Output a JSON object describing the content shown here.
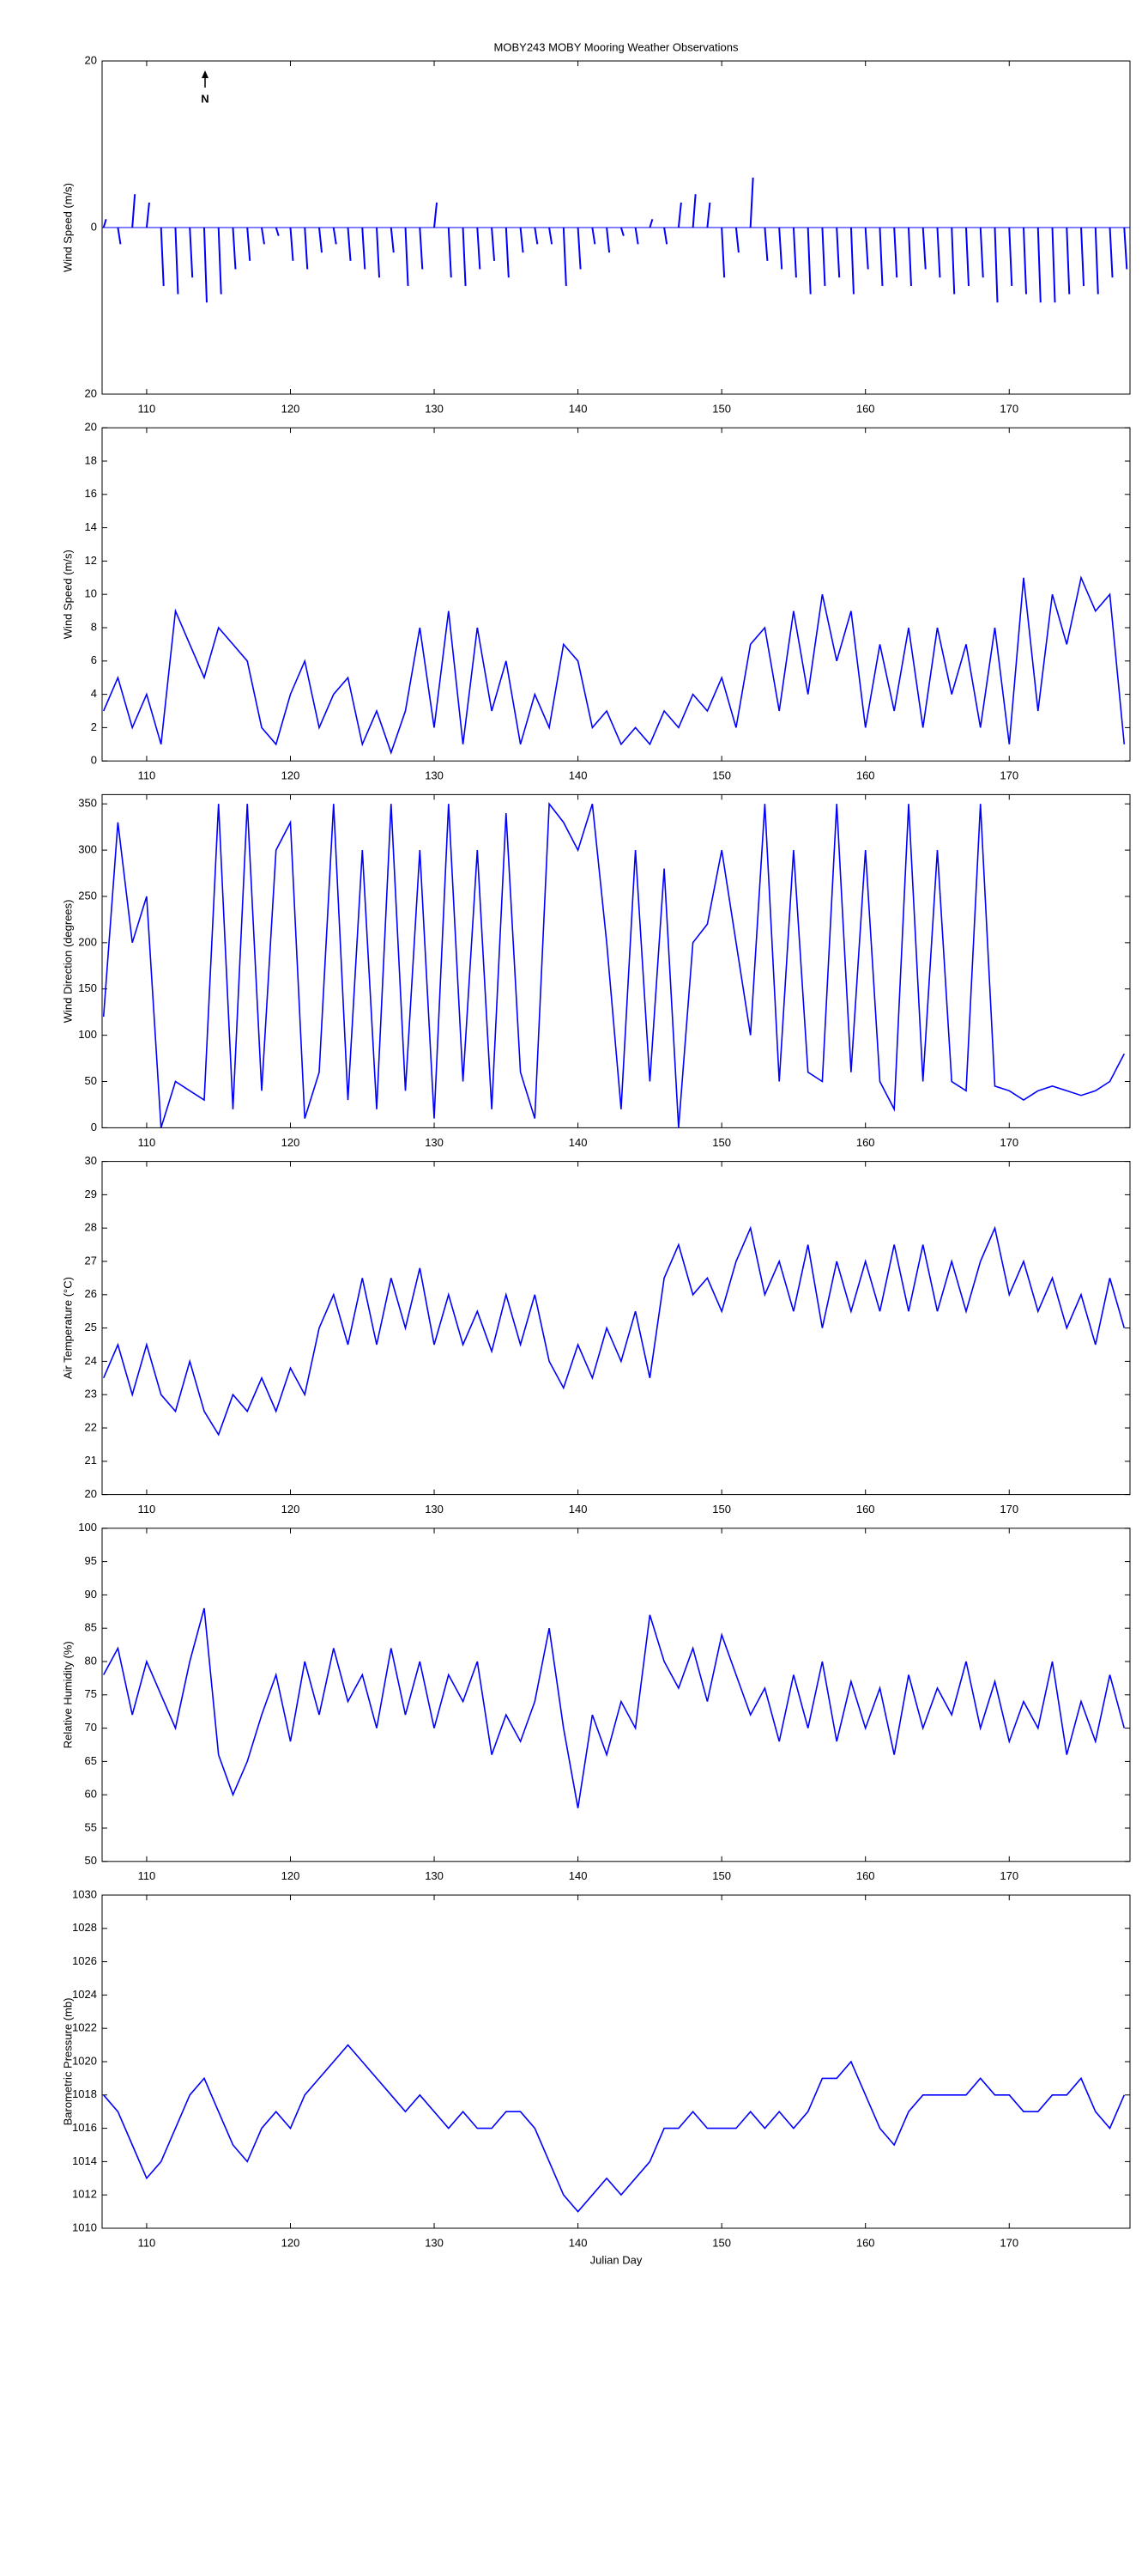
{
  "chart_data": [
    {
      "type": "stick",
      "title": "MOBY243 MOBY Mooring Weather Observations",
      "ylabel": "Wind Speed (m/s)",
      "annotation": "N",
      "color": "#0000ff",
      "x": [
        107,
        108,
        109,
        110,
        111,
        112,
        113,
        114,
        115,
        116,
        117,
        118,
        119,
        120,
        121,
        122,
        123,
        124,
        125,
        126,
        127,
        128,
        129,
        130,
        131,
        132,
        133,
        134,
        135,
        136,
        137,
        138,
        139,
        140,
        141,
        142,
        143,
        144,
        145,
        146,
        147,
        148,
        149,
        150,
        151,
        152,
        153,
        154,
        155,
        156,
        157,
        158,
        159,
        160,
        161,
        162,
        163,
        164,
        165,
        166,
        167,
        168,
        169,
        170,
        171,
        172,
        173,
        174,
        175,
        176,
        177,
        178
      ],
      "values": [
        1,
        -2,
        4,
        3,
        -7,
        -8,
        -6,
        -9,
        -8,
        -5,
        -4,
        -2,
        -1,
        -4,
        -5,
        -3,
        -2,
        -4,
        -5,
        -6,
        -3,
        -7,
        -5,
        3,
        -6,
        -7,
        -5,
        -4,
        -6,
        -3,
        -2,
        -2,
        -7,
        -5,
        -2,
        -3,
        -1,
        -2,
        1,
        -2,
        3,
        4,
        3,
        -6,
        -3,
        6,
        -4,
        -5,
        -6,
        -8,
        -7,
        -6,
        -8,
        -5,
        -7,
        -6,
        -7,
        -5,
        -6,
        -8,
        -7,
        -6,
        -9,
        -7,
        -8,
        -9,
        -9,
        -8,
        -7,
        -8,
        -6,
        -5
      ],
      "xlim": [
        106.9,
        178.4
      ],
      "xticks": [
        110,
        120,
        130,
        140,
        150,
        160,
        170
      ],
      "ylim": [
        -20,
        20
      ],
      "yticks": [
        {
          "value": -20,
          "label": "20"
        },
        0,
        20
      ]
    },
    {
      "type": "line",
      "ylabel": "Wind Speed (m/s)",
      "color": "#0000ff",
      "x": [
        107,
        108,
        109,
        110,
        111,
        112,
        113,
        114,
        115,
        116,
        117,
        118,
        119,
        120,
        121,
        122,
        123,
        124,
        125,
        126,
        127,
        128,
        129,
        130,
        131,
        132,
        133,
        134,
        135,
        136,
        137,
        138,
        139,
        140,
        141,
        142,
        143,
        144,
        145,
        146,
        147,
        148,
        149,
        150,
        151,
        152,
        153,
        154,
        155,
        156,
        157,
        158,
        159,
        160,
        161,
        162,
        163,
        164,
        165,
        166,
        167,
        168,
        169,
        170,
        171,
        172,
        173,
        174,
        175,
        176,
        177,
        178
      ],
      "values": [
        3,
        5,
        2,
        4,
        1,
        9,
        7,
        5,
        8,
        7,
        6,
        2,
        1,
        4,
        6,
        2,
        4,
        5,
        1,
        3,
        0.5,
        3,
        8,
        2,
        9,
        1,
        8,
        3,
        6,
        1,
        4,
        2,
        7,
        6,
        2,
        3,
        1,
        2,
        1,
        3,
        2,
        4,
        3,
        5,
        2,
        7,
        8,
        3,
        9,
        4,
        10,
        6,
        9,
        2,
        7,
        3,
        8,
        2,
        8,
        4,
        7,
        2,
        8,
        1,
        11,
        3,
        10,
        7,
        11,
        9,
        10,
        1
      ],
      "xlim": [
        106.9,
        178.4
      ],
      "xticks": [
        110,
        120,
        130,
        140,
        150,
        160,
        170
      ],
      "ylim": [
        0,
        20
      ],
      "yticks": [
        0,
        2,
        4,
        6,
        8,
        10,
        12,
        14,
        16,
        18,
        20
      ]
    },
    {
      "type": "line",
      "ylabel": "Wind Direction (degrees)",
      "color": "#0000ff",
      "x": [
        107,
        108,
        109,
        110,
        111,
        112,
        113,
        114,
        115,
        116,
        117,
        118,
        119,
        120,
        121,
        122,
        123,
        124,
        125,
        126,
        127,
        128,
        129,
        130,
        131,
        132,
        133,
        134,
        135,
        136,
        137,
        138,
        139,
        140,
        141,
        142,
        143,
        144,
        145,
        146,
        147,
        148,
        149,
        150,
        151,
        152,
        153,
        154,
        155,
        156,
        157,
        158,
        159,
        160,
        161,
        162,
        163,
        164,
        165,
        166,
        167,
        168,
        169,
        170,
        171,
        172,
        173,
        174,
        175,
        176,
        177,
        178
      ],
      "values": [
        120,
        330,
        200,
        250,
        0,
        50,
        40,
        30,
        350,
        20,
        350,
        40,
        300,
        330,
        10,
        60,
        350,
        30,
        300,
        20,
        350,
        40,
        300,
        10,
        350,
        50,
        300,
        20,
        340,
        60,
        10,
        350,
        330,
        300,
        350,
        200,
        20,
        300,
        50,
        280,
        0,
        200,
        220,
        300,
        200,
        100,
        350,
        50,
        300,
        60,
        50,
        350,
        60,
        300,
        50,
        20,
        350,
        50,
        300,
        50,
        40,
        350,
        45,
        40,
        30,
        40,
        45,
        40,
        35,
        40,
        50,
        80
      ],
      "xlim": [
        106.9,
        178.4
      ],
      "xticks": [
        110,
        120,
        130,
        140,
        150,
        160,
        170
      ],
      "ylim": [
        0,
        360
      ],
      "yticks": [
        0,
        50,
        100,
        150,
        200,
        250,
        300,
        350
      ]
    },
    {
      "type": "line",
      "ylabel": "Air Temperature (°C)",
      "color": "#0000ff",
      "x": [
        107,
        108,
        109,
        110,
        111,
        112,
        113,
        114,
        115,
        116,
        117,
        118,
        119,
        120,
        121,
        122,
        123,
        124,
        125,
        126,
        127,
        128,
        129,
        130,
        131,
        132,
        133,
        134,
        135,
        136,
        137,
        138,
        139,
        140,
        141,
        142,
        143,
        144,
        145,
        146,
        147,
        148,
        149,
        150,
        151,
        152,
        153,
        154,
        155,
        156,
        157,
        158,
        159,
        160,
        161,
        162,
        163,
        164,
        165,
        166,
        167,
        168,
        169,
        170,
        171,
        172,
        173,
        174,
        175,
        176,
        177,
        178
      ],
      "values": [
        23.5,
        24.5,
        23,
        24.5,
        23,
        22.5,
        24,
        22.5,
        21.8,
        23,
        22.5,
        23.5,
        22.5,
        23.8,
        23,
        25,
        26,
        24.5,
        26.5,
        24.5,
        26.5,
        25,
        26.8,
        24.5,
        26,
        24.5,
        25.5,
        24.3,
        26,
        24.5,
        26,
        24,
        23.2,
        24.5,
        23.5,
        25,
        24,
        25.5,
        23.5,
        26.5,
        27.5,
        26,
        26.5,
        25.5,
        27,
        28,
        26,
        27,
        25.5,
        27.5,
        25,
        27,
        25.5,
        27,
        25.5,
        27.5,
        25.5,
        27.5,
        25.5,
        27,
        25.5,
        27,
        28,
        26,
        27,
        25.5,
        26.5,
        25,
        26,
        24.5,
        26.5,
        25
      ],
      "xlim": [
        106.9,
        178.4
      ],
      "xticks": [
        110,
        120,
        130,
        140,
        150,
        160,
        170
      ],
      "ylim": [
        20,
        30
      ],
      "yticks": [
        20,
        21,
        22,
        23,
        24,
        25,
        26,
        27,
        28,
        29,
        30
      ]
    },
    {
      "type": "line",
      "ylabel": "Relative Humidity (%)",
      "color": "#0000ff",
      "x": [
        107,
        108,
        109,
        110,
        111,
        112,
        113,
        114,
        115,
        116,
        117,
        118,
        119,
        120,
        121,
        122,
        123,
        124,
        125,
        126,
        127,
        128,
        129,
        130,
        131,
        132,
        133,
        134,
        135,
        136,
        137,
        138,
        139,
        140,
        141,
        142,
        143,
        144,
        145,
        146,
        147,
        148,
        149,
        150,
        151,
        152,
        153,
        154,
        155,
        156,
        157,
        158,
        159,
        160,
        161,
        162,
        163,
        164,
        165,
        166,
        167,
        168,
        169,
        170,
        171,
        172,
        173,
        174,
        175,
        176,
        177,
        178
      ],
      "values": [
        78,
        82,
        72,
        80,
        75,
        70,
        80,
        88,
        66,
        60,
        65,
        72,
        78,
        68,
        80,
        72,
        82,
        74,
        78,
        70,
        82,
        72,
        80,
        70,
        78,
        74,
        80,
        66,
        72,
        68,
        74,
        85,
        70,
        58,
        72,
        66,
        74,
        70,
        87,
        80,
        76,
        82,
        74,
        84,
        78,
        72,
        76,
        68,
        78,
        70,
        80,
        68,
        77,
        70,
        76,
        66,
        78,
        70,
        76,
        72,
        80,
        70,
        77,
        68,
        74,
        70,
        80,
        66,
        74,
        68,
        78,
        70
      ],
      "xlim": [
        106.9,
        178.4
      ],
      "xticks": [
        110,
        120,
        130,
        140,
        150,
        160,
        170
      ],
      "ylim": [
        50,
        100
      ],
      "yticks": [
        50,
        55,
        60,
        65,
        70,
        75,
        80,
        85,
        90,
        95,
        100
      ]
    },
    {
      "type": "line",
      "ylabel": "Barometric Pressure (mb)",
      "xlabel": "Julian Day",
      "color": "#0000ff",
      "x": [
        107,
        108,
        109,
        110,
        111,
        112,
        113,
        114,
        115,
        116,
        117,
        118,
        119,
        120,
        121,
        122,
        123,
        124,
        125,
        126,
        127,
        128,
        129,
        130,
        131,
        132,
        133,
        134,
        135,
        136,
        137,
        138,
        139,
        140,
        141,
        142,
        143,
        144,
        145,
        146,
        147,
        148,
        149,
        150,
        151,
        152,
        153,
        154,
        155,
        156,
        157,
        158,
        159,
        160,
        161,
        162,
        163,
        164,
        165,
        166,
        167,
        168,
        169,
        170,
        171,
        172,
        173,
        174,
        175,
        176,
        177,
        178
      ],
      "values": [
        1018,
        1017,
        1015,
        1013,
        1014,
        1016,
        1018,
        1019,
        1017,
        1015,
        1014,
        1016,
        1017,
        1016,
        1018,
        1019,
        1020,
        1021,
        1020,
        1019,
        1018,
        1017,
        1018,
        1017,
        1016,
        1017,
        1016,
        1016,
        1017,
        1017,
        1016,
        1014,
        1012,
        1011,
        1012,
        1013,
        1012,
        1013,
        1014,
        1016,
        1016,
        1017,
        1016,
        1016,
        1016,
        1017,
        1016,
        1017,
        1016,
        1017,
        1019,
        1019,
        1020,
        1018,
        1016,
        1015,
        1017,
        1018,
        1018,
        1018,
        1018,
        1019,
        1018,
        1018,
        1017,
        1017,
        1018,
        1018,
        1019,
        1017,
        1016,
        1018
      ],
      "xlim": [
        106.9,
        178.4
      ],
      "xticks": [
        110,
        120,
        130,
        140,
        150,
        160,
        170
      ],
      "ylim": [
        1010,
        1030
      ],
      "yticks": [
        1010,
        1012,
        1014,
        1016,
        1018,
        1020,
        1022,
        1024,
        1026,
        1028,
        1030
      ]
    }
  ]
}
